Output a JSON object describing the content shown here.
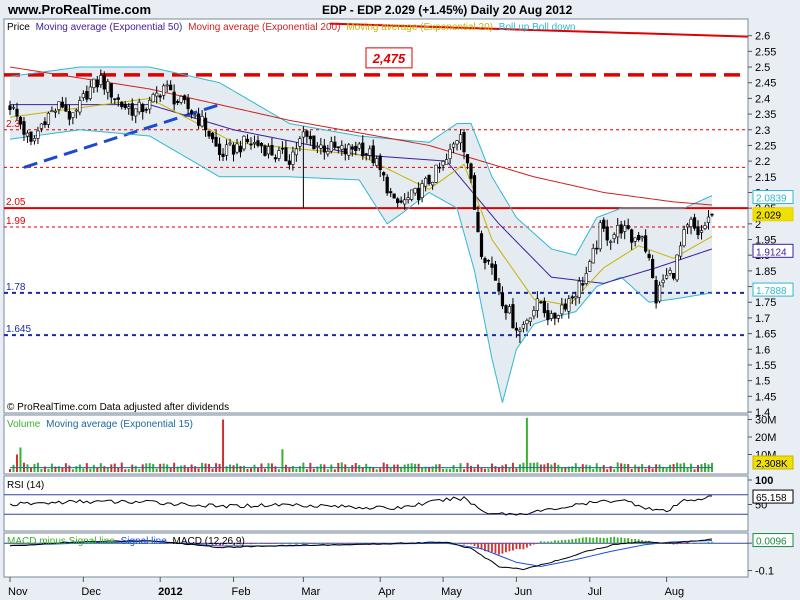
{
  "header": {
    "site": "www.ProRealTime.com",
    "title": "EDP - EDP    2.029 (+1.45%)   Daily  20 Aug 2012"
  },
  "colors": {
    "ema50": "#3c1f9c",
    "ema200": "#cc2222",
    "ema20": "#c8b400",
    "boll": "#30b8d0",
    "up": "#3ab030",
    "down": "#d03030",
    "resistance": "#e00000",
    "support": "#1a2aa0",
    "trend": "#1a4ad0"
  },
  "chart_data": [
    {
      "type": "candlestick",
      "legend": {
        "prefix": "Price",
        "items": [
          {
            "label": "Moving average (Exponential 50)",
            "color": "#3c1f9c"
          },
          {
            "label": "Moving average (Exponential 200)",
            "color": "#cc2222"
          },
          {
            "label": "Moving average (Exponential 20)",
            "color": "#c8b400"
          },
          {
            "label": "Boll up Boll down",
            "color": "#30b8d0"
          }
        ]
      },
      "ylim": [
        1.4,
        2.65
      ],
      "yticks": [
        1.4,
        1.45,
        1.5,
        1.55,
        1.6,
        1.65,
        1.7,
        1.75,
        1.8,
        1.85,
        1.9,
        1.95,
        2,
        2.05,
        2.1,
        2.15,
        2.2,
        2.25,
        2.3,
        2.35,
        2.4,
        2.45,
        2.5,
        2.55,
        2.6
      ],
      "ytick_labels": [
        "1.4",
        "1.45",
        "1.5",
        "1.55",
        "1.6",
        "1.65",
        "1.7",
        "1.75",
        "1.8",
        "1.85",
        "1.9",
        "1.95",
        "2",
        "2.05",
        "2.1",
        "2.15",
        "2.2",
        "2.25",
        "2.3",
        "2.35",
        "2.4",
        "2.45",
        "2.5",
        "2.55",
        "2.6"
      ],
      "xticks": [
        {
          "label": "Nov",
          "index": 0
        },
        {
          "label": "Dec",
          "index": 21
        },
        {
          "label": "2012",
          "index": 43
        },
        {
          "label": "Feb",
          "index": 64
        },
        {
          "label": "Mar",
          "index": 84
        },
        {
          "label": "Apr",
          "index": 106
        },
        {
          "label": "May",
          "index": 124
        },
        {
          "label": "Jun",
          "index": 145
        },
        {
          "label": "Jul",
          "index": 166
        },
        {
          "label": "Aug",
          "index": 188
        }
      ],
      "n_bars": 202,
      "anchors_close": [
        [
          0,
          2.38
        ],
        [
          3,
          2.32
        ],
        [
          6,
          2.25
        ],
        [
          10,
          2.34
        ],
        [
          15,
          2.38
        ],
        [
          18,
          2.33
        ],
        [
          22,
          2.42
        ],
        [
          26,
          2.46
        ],
        [
          29,
          2.42
        ],
        [
          32,
          2.38
        ],
        [
          36,
          2.36
        ],
        [
          40,
          2.38
        ],
        [
          44,
          2.44
        ],
        [
          48,
          2.39
        ],
        [
          52,
          2.36
        ],
        [
          56,
          2.31
        ],
        [
          60,
          2.22
        ],
        [
          64,
          2.24
        ],
        [
          68,
          2.26
        ],
        [
          72,
          2.25
        ],
        [
          76,
          2.22
        ],
        [
          80,
          2.21
        ],
        [
          84,
          2.28
        ],
        [
          88,
          2.25
        ],
        [
          92,
          2.24
        ],
        [
          96,
          2.23
        ],
        [
          100,
          2.25
        ],
        [
          104,
          2.21
        ],
        [
          108,
          2.12
        ],
        [
          110,
          2.06
        ],
        [
          113,
          2.07
        ],
        [
          117,
          2.1
        ],
        [
          121,
          2.15
        ],
        [
          125,
          2.2
        ],
        [
          127,
          2.25
        ],
        [
          129,
          2.3
        ],
        [
          131,
          2.2
        ],
        [
          133,
          2.05
        ],
        [
          135,
          1.92
        ],
        [
          138,
          1.86
        ],
        [
          141,
          1.76
        ],
        [
          144,
          1.69
        ],
        [
          146,
          1.66
        ],
        [
          149,
          1.72
        ],
        [
          152,
          1.75
        ],
        [
          155,
          1.69
        ],
        [
          158,
          1.74
        ],
        [
          161,
          1.77
        ],
        [
          164,
          1.82
        ],
        [
          166,
          1.86
        ],
        [
          169,
          1.98
        ],
        [
          172,
          1.96
        ],
        [
          175,
          1.99
        ],
        [
          178,
          1.95
        ],
        [
          181,
          1.97
        ],
        [
          183,
          1.88
        ],
        [
          185,
          1.76
        ],
        [
          187,
          1.82
        ],
        [
          190,
          1.85
        ],
        [
          193,
          1.96
        ],
        [
          195,
          2.0
        ],
        [
          197,
          1.95
        ],
        [
          199,
          2.0
        ],
        [
          201,
          2.03
        ]
      ],
      "anchors_ema200": [
        [
          0,
          2.5
        ],
        [
          40,
          2.43
        ],
        [
          80,
          2.33
        ],
        [
          120,
          2.25
        ],
        [
          150,
          2.15
        ],
        [
          170,
          2.1
        ],
        [
          190,
          2.07
        ],
        [
          201,
          2.06
        ]
      ],
      "anchors_ema50": [
        [
          0,
          2.38
        ],
        [
          40,
          2.38
        ],
        [
          64,
          2.3
        ],
        [
          100,
          2.22
        ],
        [
          125,
          2.2
        ],
        [
          140,
          2.0
        ],
        [
          155,
          1.83
        ],
        [
          170,
          1.81
        ],
        [
          185,
          1.86
        ],
        [
          201,
          1.92
        ]
      ],
      "anchors_ema20": [
        [
          0,
          2.34
        ],
        [
          40,
          2.4
        ],
        [
          64,
          2.26
        ],
        [
          100,
          2.22
        ],
        [
          120,
          2.11
        ],
        [
          130,
          2.19
        ],
        [
          138,
          1.95
        ],
        [
          150,
          1.76
        ],
        [
          160,
          1.74
        ],
        [
          170,
          1.86
        ],
        [
          180,
          1.93
        ],
        [
          190,
          1.89
        ],
        [
          201,
          1.96
        ]
      ],
      "anchors_boll_up": [
        [
          0,
          2.47
        ],
        [
          20,
          2.5
        ],
        [
          40,
          2.5
        ],
        [
          60,
          2.45
        ],
        [
          80,
          2.32
        ],
        [
          100,
          2.28
        ],
        [
          110,
          2.27
        ],
        [
          120,
          2.26
        ],
        [
          128,
          2.32
        ],
        [
          132,
          2.32
        ],
        [
          138,
          2.15
        ],
        [
          145,
          2.02
        ],
        [
          155,
          1.92
        ],
        [
          162,
          1.9
        ],
        [
          168,
          2.02
        ],
        [
          175,
          2.05
        ],
        [
          185,
          2.05
        ],
        [
          193,
          2.05
        ],
        [
          201,
          2.09
        ]
      ],
      "anchors_boll_down": [
        [
          0,
          2.27
        ],
        [
          20,
          2.3
        ],
        [
          40,
          2.28
        ],
        [
          60,
          2.15
        ],
        [
          80,
          2.15
        ],
        [
          100,
          2.14
        ],
        [
          108,
          2.0
        ],
        [
          113,
          2.04
        ],
        [
          120,
          2.1
        ],
        [
          128,
          2.05
        ],
        [
          133,
          1.85
        ],
        [
          138,
          1.57
        ],
        [
          141,
          1.43
        ],
        [
          145,
          1.6
        ],
        [
          150,
          1.68
        ],
        [
          155,
          1.7
        ],
        [
          162,
          1.72
        ],
        [
          168,
          1.8
        ],
        [
          175,
          1.83
        ],
        [
          183,
          1.75
        ],
        [
          190,
          1.76
        ],
        [
          201,
          1.78
        ]
      ],
      "spikes": [
        {
          "index": 84,
          "low": 2.05
        },
        {
          "index": 146,
          "low": 1.62
        }
      ],
      "trendline": {
        "from": [
          4,
          2.18
        ],
        "to": [
          60,
          2.38
        ]
      },
      "levels": [
        {
          "value": 2.6,
          "label": "",
          "style": "red-falling"
        },
        {
          "value": 2.475,
          "label": "2,475",
          "style": "red-thick-dashed"
        },
        {
          "value": 2.3,
          "label": "2.3",
          "style": "red-dashed"
        },
        {
          "value": 2.18,
          "label": "",
          "style": "red-dashed"
        },
        {
          "value": 2.05,
          "label": "2.05",
          "style": "red-solid"
        },
        {
          "value": 1.99,
          "label": "1.99",
          "style": "red-dashed"
        },
        {
          "value": 1.78,
          "label": "1.78",
          "style": "blue-dashed"
        },
        {
          "value": 1.645,
          "label": "1.645",
          "style": "blue-dashed"
        }
      ],
      "value_tags": [
        {
          "value": 2.0839,
          "label": "2.0839",
          "color": "#30b8d0"
        },
        {
          "value": 2.029,
          "label": "2.029",
          "color": "#e8d000"
        },
        {
          "value": 1.9124,
          "label": "1.9124",
          "color": "#3c1f9c"
        },
        {
          "value": 1.7888,
          "label": "1.7888",
          "color": "#30b8d0"
        }
      ],
      "footer_note": "© ProRealTime.com  Data adjusted after dividends"
    },
    {
      "type": "bar",
      "legend": {
        "items": [
          {
            "label": "Volume",
            "color": "#3ab030"
          },
          {
            "label": "Moving average (Exponential 15)",
            "color": "#1a6aa0"
          }
        ]
      },
      "ylim": [
        0,
        32
      ],
      "yticks": [
        10,
        20,
        30
      ],
      "ytick_labels": [
        "10M",
        "20M",
        "30M"
      ],
      "unit": "M",
      "spikes_up": [
        {
          "index": 3,
          "value": 14
        },
        {
          "index": 78,
          "value": 13
        },
        {
          "index": 148,
          "value": 31
        }
      ],
      "spikes_down": [
        {
          "index": 61,
          "value": 30
        },
        {
          "index": 2,
          "value": 10
        }
      ],
      "ema15_level": 2.5,
      "last_value_label": "2,308K"
    },
    {
      "type": "line",
      "legend": {
        "items": [
          {
            "label": "RSI (14)",
            "color": "#000000"
          }
        ]
      },
      "ylim": [
        0,
        100
      ],
      "yticks": [
        100,
        50
      ],
      "ytick_labels": [
        "100",
        "50"
      ],
      "levels": [
        70,
        30
      ],
      "anchors": [
        [
          0,
          50
        ],
        [
          20,
          56
        ],
        [
          40,
          55
        ],
        [
          60,
          46
        ],
        [
          80,
          50
        ],
        [
          110,
          42
        ],
        [
          125,
          60
        ],
        [
          130,
          63
        ],
        [
          136,
          34
        ],
        [
          145,
          30
        ],
        [
          155,
          40
        ],
        [
          165,
          52
        ],
        [
          175,
          60
        ],
        [
          183,
          42
        ],
        [
          188,
          35
        ],
        [
          193,
          58
        ],
        [
          201,
          65
        ]
      ],
      "last_value_label": "65.158"
    },
    {
      "type": "line",
      "legend": {
        "items": [
          {
            "label": "MACD minus Signal line",
            "color": "#3ab030"
          },
          {
            "label": "Signal line",
            "color": "#1a50e0"
          },
          {
            "label": "MACD (12,26,9)",
            "color": "#000000"
          }
        ]
      },
      "ylim": [
        -0.12,
        0.03
      ],
      "yticks": [
        0,
        -0.1
      ],
      "ytick_labels": [
        "0",
        "-0.1"
      ],
      "anchors_macd": [
        [
          0,
          -0.01
        ],
        [
          20,
          0.005
        ],
        [
          40,
          0.01
        ],
        [
          60,
          -0.015
        ],
        [
          80,
          -0.008
        ],
        [
          100,
          -0.005
        ],
        [
          125,
          0.005
        ],
        [
          132,
          -0.02
        ],
        [
          140,
          -0.085
        ],
        [
          147,
          -0.095
        ],
        [
          155,
          -0.07
        ],
        [
          165,
          -0.03
        ],
        [
          175,
          0.0
        ],
        [
          183,
          0.005
        ],
        [
          190,
          0.0
        ],
        [
          201,
          0.016
        ]
      ],
      "anchors_signal": [
        [
          0,
          -0.008
        ],
        [
          20,
          0.0
        ],
        [
          40,
          0.008
        ],
        [
          60,
          -0.01
        ],
        [
          80,
          -0.01
        ],
        [
          100,
          -0.004
        ],
        [
          125,
          0.0
        ],
        [
          135,
          -0.02
        ],
        [
          145,
          -0.07
        ],
        [
          152,
          -0.085
        ],
        [
          162,
          -0.06
        ],
        [
          172,
          -0.03
        ],
        [
          182,
          -0.005
        ],
        [
          190,
          0.005
        ],
        [
          201,
          0.01
        ]
      ],
      "last_value_label": "0.0096"
    }
  ]
}
